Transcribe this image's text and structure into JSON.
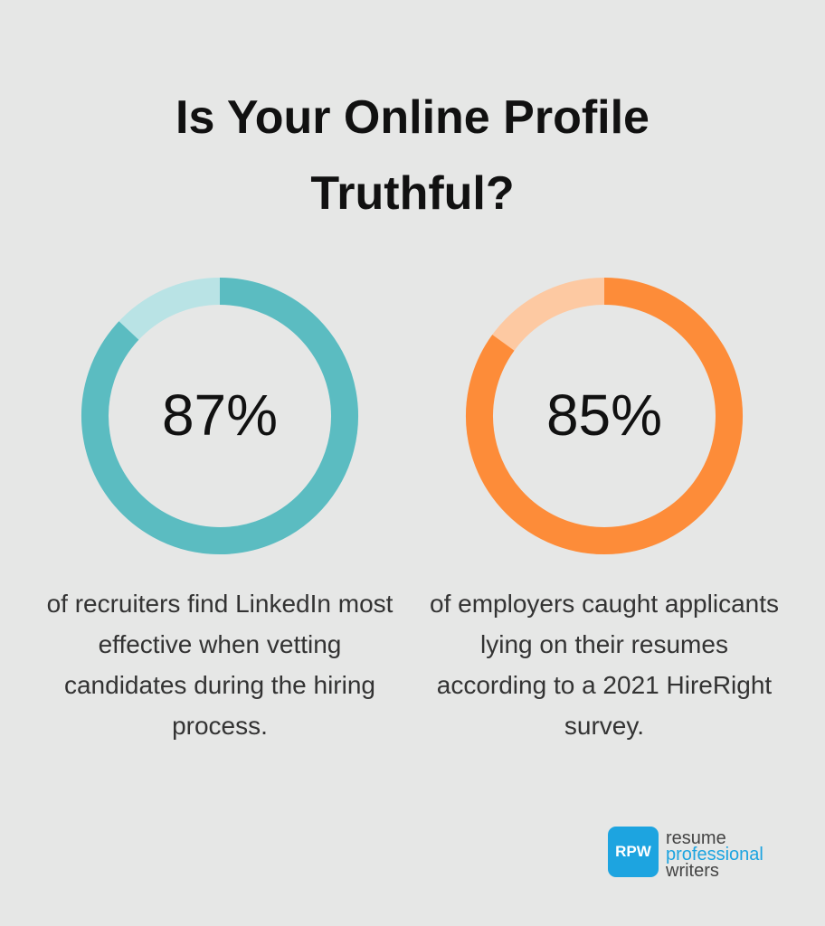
{
  "title": "Is Your Online Profile Truthful?",
  "chart_data": [
    {
      "type": "donut",
      "values": [
        87
      ],
      "value_labels": [
        "87%"
      ],
      "ylim": [
        0,
        100
      ],
      "color": "#5bbcc1",
      "track_color": "#b9e3e5",
      "caption": "of recruiters find LinkedIn most effective when vetting candidates during the hiring process."
    },
    {
      "type": "donut",
      "values": [
        85
      ],
      "value_labels": [
        "85%"
      ],
      "ylim": [
        0,
        100
      ],
      "color": "#fd8c39",
      "track_color": "#fdc9a2",
      "caption": "of employers caught applicants lying on their resumes according to a 2021 HireRight survey."
    }
  ],
  "logo": {
    "mark": "RPW",
    "lines": [
      "resume",
      "professional",
      "writers"
    ]
  }
}
